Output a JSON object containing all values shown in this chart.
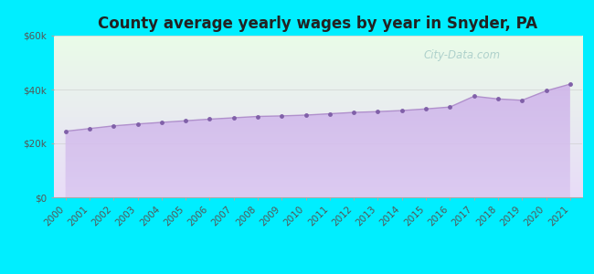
{
  "title": "County average yearly wages by year in Snyder, PA",
  "years": [
    2000,
    2001,
    2002,
    2003,
    2004,
    2005,
    2006,
    2007,
    2008,
    2009,
    2010,
    2011,
    2012,
    2013,
    2014,
    2015,
    2016,
    2017,
    2018,
    2019,
    2020,
    2021
  ],
  "values": [
    24500,
    25500,
    26500,
    27200,
    27800,
    28400,
    29000,
    29500,
    30000,
    30200,
    30500,
    31000,
    31500,
    31800,
    32200,
    32800,
    33500,
    37500,
    36500,
    36000,
    39500,
    42000
  ],
  "ylim": [
    0,
    60000
  ],
  "yticks": [
    0,
    20000,
    40000,
    60000
  ],
  "ytick_labels": [
    "$0",
    "$20k",
    "$40k",
    "$60k"
  ],
  "fill_color_top": "#c8a8e8",
  "fill_color_bottom": "#dac8f0",
  "line_color": "#b090cc",
  "marker_color": "#8060a8",
  "marker_size": 3.5,
  "bg_outer": "#00eeff",
  "bg_plot_top": "#eafce8",
  "bg_plot_bottom": "#e8dcf8",
  "title_fontsize": 12,
  "title_fontweight": "bold",
  "title_color": "#222222",
  "watermark_text": "City-Data.com",
  "watermark_color": "#88b8b8",
  "watermark_alpha": 0.6,
  "tick_label_color": "#555555",
  "tick_fontsize": 7.5
}
